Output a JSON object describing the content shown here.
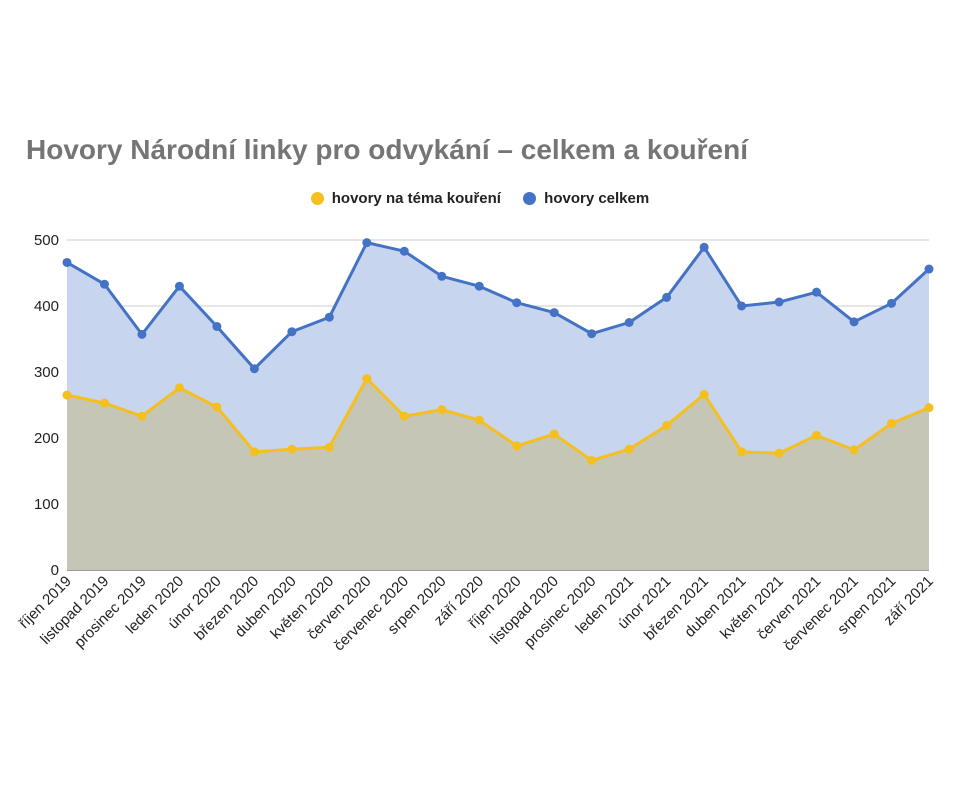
{
  "chart_data": {
    "type": "area",
    "title": "Hovory Národní linky pro odvykání – celkem a kouření",
    "categories": [
      "říjen 2019",
      "listopad 2019",
      "prosinec 2019",
      "leden 2020",
      "únor 2020",
      "březen 2020",
      "duben 2020",
      "květen 2020",
      "červen 2020",
      "červenec 2020",
      "srpen 2020",
      "září 2020",
      "říjen 2020",
      "listopad 2020",
      "prosinec 2020",
      "leden 2021",
      "únor 2021",
      "březen 2021",
      "duben 2021",
      "květen 2021",
      "červen 2021",
      "červenec 2021",
      "srpen 2021",
      "září 2021"
    ],
    "series": [
      {
        "name": "hovory na téma kouření",
        "color": "#F4BF1F",
        "fill": "#C5C6B5",
        "values": [
          265,
          253,
          233,
          276,
          247,
          179,
          183,
          186,
          290,
          233,
          243,
          227,
          188,
          206,
          166,
          183,
          219,
          266,
          179,
          177,
          204,
          182,
          222,
          246
        ]
      },
      {
        "name": "hovory celkem",
        "color": "#4472C4",
        "fill": "#C7D5EE",
        "values": [
          466,
          433,
          357,
          430,
          369,
          305,
          361,
          383,
          496,
          483,
          445,
          430,
          405,
          390,
          358,
          375,
          413,
          489,
          400,
          406,
          421,
          376,
          404,
          456
        ]
      }
    ],
    "y_ticks": [
      "0",
      "100",
      "200",
      "300",
      "400",
      "500"
    ],
    "ylim": [
      0,
      500
    ],
    "grid": true,
    "legend_position": "top-center"
  }
}
